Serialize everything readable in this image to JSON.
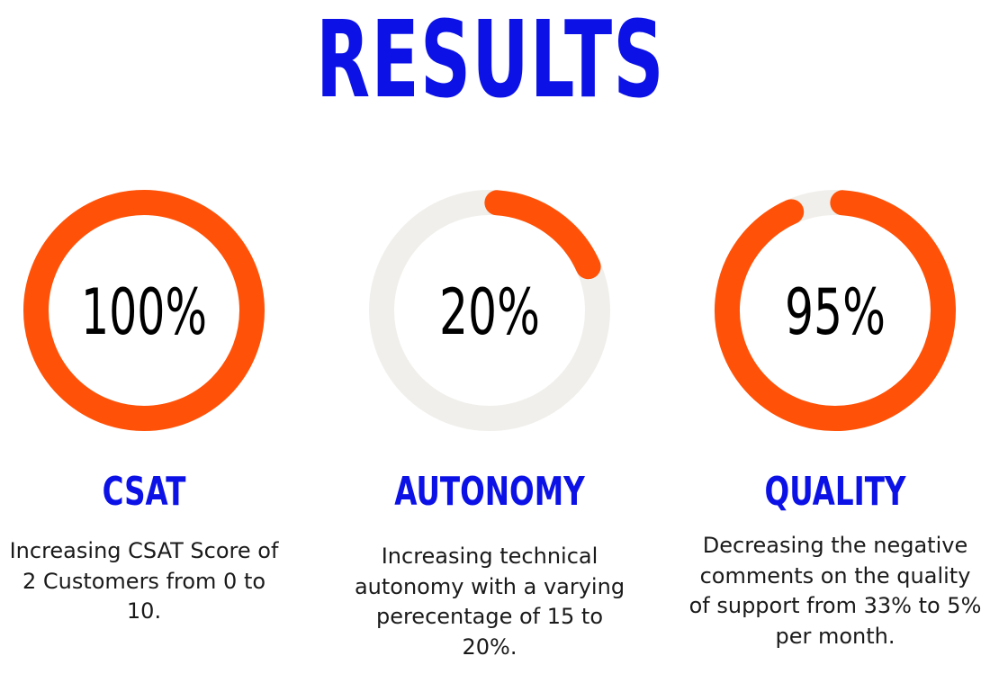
{
  "title": "RESULTS",
  "colors": {
    "accent": "#ff5208",
    "track": "#f0efeb",
    "heading": "#0c12e6",
    "text": "#000000"
  },
  "chart_data": [
    {
      "type": "donut",
      "label": "100%",
      "value": 100,
      "max": 100,
      "metric": "CSAT",
      "description": "Increasing CSAT Score of 2 Customers from 0 to 10."
    },
    {
      "type": "donut",
      "label": "20%",
      "value": 20,
      "max": 100,
      "metric": "AUTONOMY",
      "description": "Increasing technical autonomy with a varying perecentage of 15 to 20%."
    },
    {
      "type": "donut",
      "label": "95%",
      "value": 95,
      "max": 100,
      "metric": "QUALITY",
      "description": "Decreasing the negative comments on the quality of support from 33% to 5% per month."
    }
  ]
}
